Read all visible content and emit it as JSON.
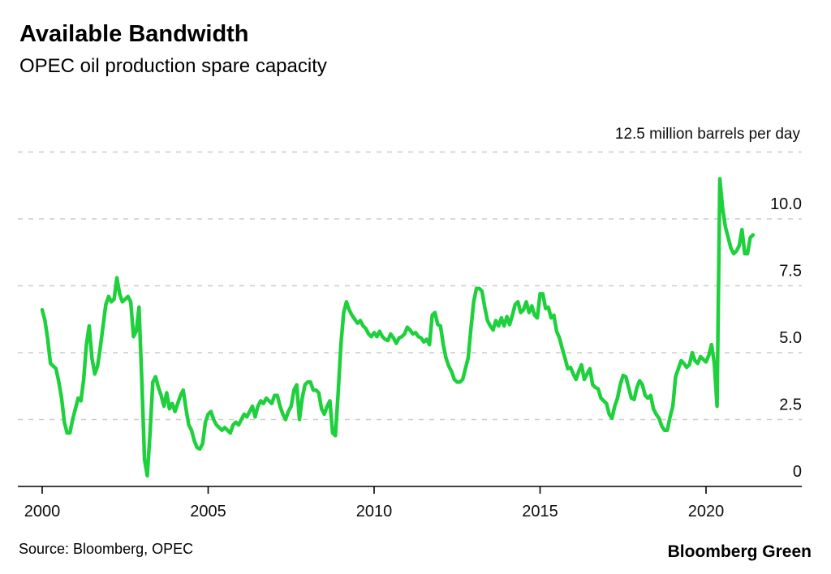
{
  "header": {
    "title": "Available Bandwidth",
    "subtitle": "OPEC oil production spare capacity"
  },
  "footer": {
    "source": "Source: Bloomberg, OPEC",
    "brand": "Bloomberg Green"
  },
  "colors": {
    "line_green": "#1ed13c",
    "grid_gray": "#cbcbcb",
    "axis_black": "#000000",
    "text_black": "#000000"
  },
  "chart_data": {
    "type": "line",
    "title": "Available Bandwidth",
    "subtitle": "OPEC oil production spare capacity",
    "unit_label": "12.5 million barrels per day",
    "xlabel": "",
    "ylabel": "million barrels per day",
    "xlim": [
      2000,
      2021.6
    ],
    "ylim": [
      0,
      12.5
    ],
    "x_ticks": [
      2000,
      2005,
      2010,
      2015,
      2020
    ],
    "y_ticks": [
      0,
      2.5,
      5,
      7.5,
      10,
      12.5
    ],
    "y_tick_labels": [
      "0",
      "2.5",
      "5.0",
      "7.5",
      "10.0"
    ],
    "grid": "horizontal-dashed",
    "legend": "none",
    "series": [
      {
        "name": "OPEC oil production spare capacity",
        "color": "#1ed13c",
        "x_start": 2000.0,
        "points_per_year": 12,
        "values": [
          6.6,
          6.2,
          5.5,
          4.6,
          4.5,
          4.4,
          3.9,
          3.3,
          2.4,
          2.0,
          2.0,
          2.5,
          2.9,
          3.3,
          3.2,
          4.0,
          5.3,
          6.0,
          4.8,
          4.2,
          4.5,
          5.2,
          6.0,
          6.8,
          7.1,
          6.9,
          7.0,
          7.8,
          7.2,
          6.9,
          7.0,
          7.1,
          6.9,
          5.6,
          5.8,
          6.7,
          4.0,
          1.0,
          0.4,
          2.0,
          3.9,
          4.1,
          3.7,
          3.4,
          3.0,
          3.5,
          2.9,
          3.1,
          2.8,
          3.1,
          3.4,
          3.6,
          2.9,
          2.3,
          2.1,
          1.7,
          1.45,
          1.4,
          1.6,
          2.4,
          2.7,
          2.8,
          2.5,
          2.3,
          2.2,
          2.1,
          2.2,
          2.1,
          2.0,
          2.3,
          2.4,
          2.3,
          2.5,
          2.7,
          2.6,
          2.8,
          3.0,
          2.6,
          3.0,
          3.2,
          3.1,
          3.3,
          3.2,
          3.1,
          3.4,
          3.4,
          3.0,
          2.7,
          2.5,
          2.8,
          3.0,
          3.6,
          3.8,
          2.5,
          3.3,
          3.8,
          3.9,
          3.9,
          3.6,
          3.6,
          3.5,
          2.9,
          2.7,
          3.0,
          3.2,
          2.0,
          1.9,
          3.5,
          5.3,
          6.5,
          6.9,
          6.6,
          6.4,
          6.25,
          6.1,
          6.2,
          6.0,
          5.9,
          5.7,
          5.6,
          5.75,
          5.6,
          5.8,
          5.6,
          5.5,
          5.45,
          5.7,
          5.55,
          5.35,
          5.55,
          5.6,
          5.7,
          5.95,
          5.85,
          5.7,
          5.75,
          5.6,
          5.55,
          5.4,
          5.5,
          5.3,
          6.4,
          6.5,
          6.05,
          6.0,
          5.3,
          4.8,
          4.5,
          4.3,
          4.0,
          3.9,
          3.9,
          4.0,
          4.4,
          4.8,
          5.9,
          6.9,
          7.4,
          7.4,
          7.3,
          6.7,
          6.2,
          6.0,
          5.85,
          6.2,
          6.0,
          6.3,
          6.0,
          6.35,
          6.05,
          6.4,
          6.8,
          6.9,
          6.5,
          6.6,
          6.9,
          6.5,
          6.75,
          6.4,
          6.3,
          7.2,
          7.2,
          6.65,
          6.7,
          6.3,
          6.4,
          5.8,
          5.55,
          5.15,
          4.8,
          4.4,
          4.45,
          4.2,
          4.0,
          4.3,
          4.55,
          4.0,
          4.2,
          4.4,
          3.8,
          3.7,
          3.65,
          3.3,
          3.2,
          3.1,
          2.7,
          2.55,
          3.0,
          3.3,
          3.8,
          4.15,
          4.1,
          3.7,
          3.3,
          3.25,
          3.7,
          3.95,
          3.8,
          3.4,
          3.3,
          3.4,
          2.9,
          2.7,
          2.55,
          2.25,
          2.1,
          2.1,
          2.6,
          3.0,
          4.1,
          4.4,
          4.7,
          4.6,
          4.45,
          4.55,
          5.0,
          4.7,
          4.6,
          4.85,
          4.75,
          4.65,
          4.9,
          5.3,
          4.6,
          3.0,
          11.5,
          10.4,
          9.7,
          9.3,
          8.9,
          8.7,
          8.8,
          9.0,
          9.6,
          8.7,
          8.7,
          9.3,
          9.4
        ]
      }
    ]
  }
}
